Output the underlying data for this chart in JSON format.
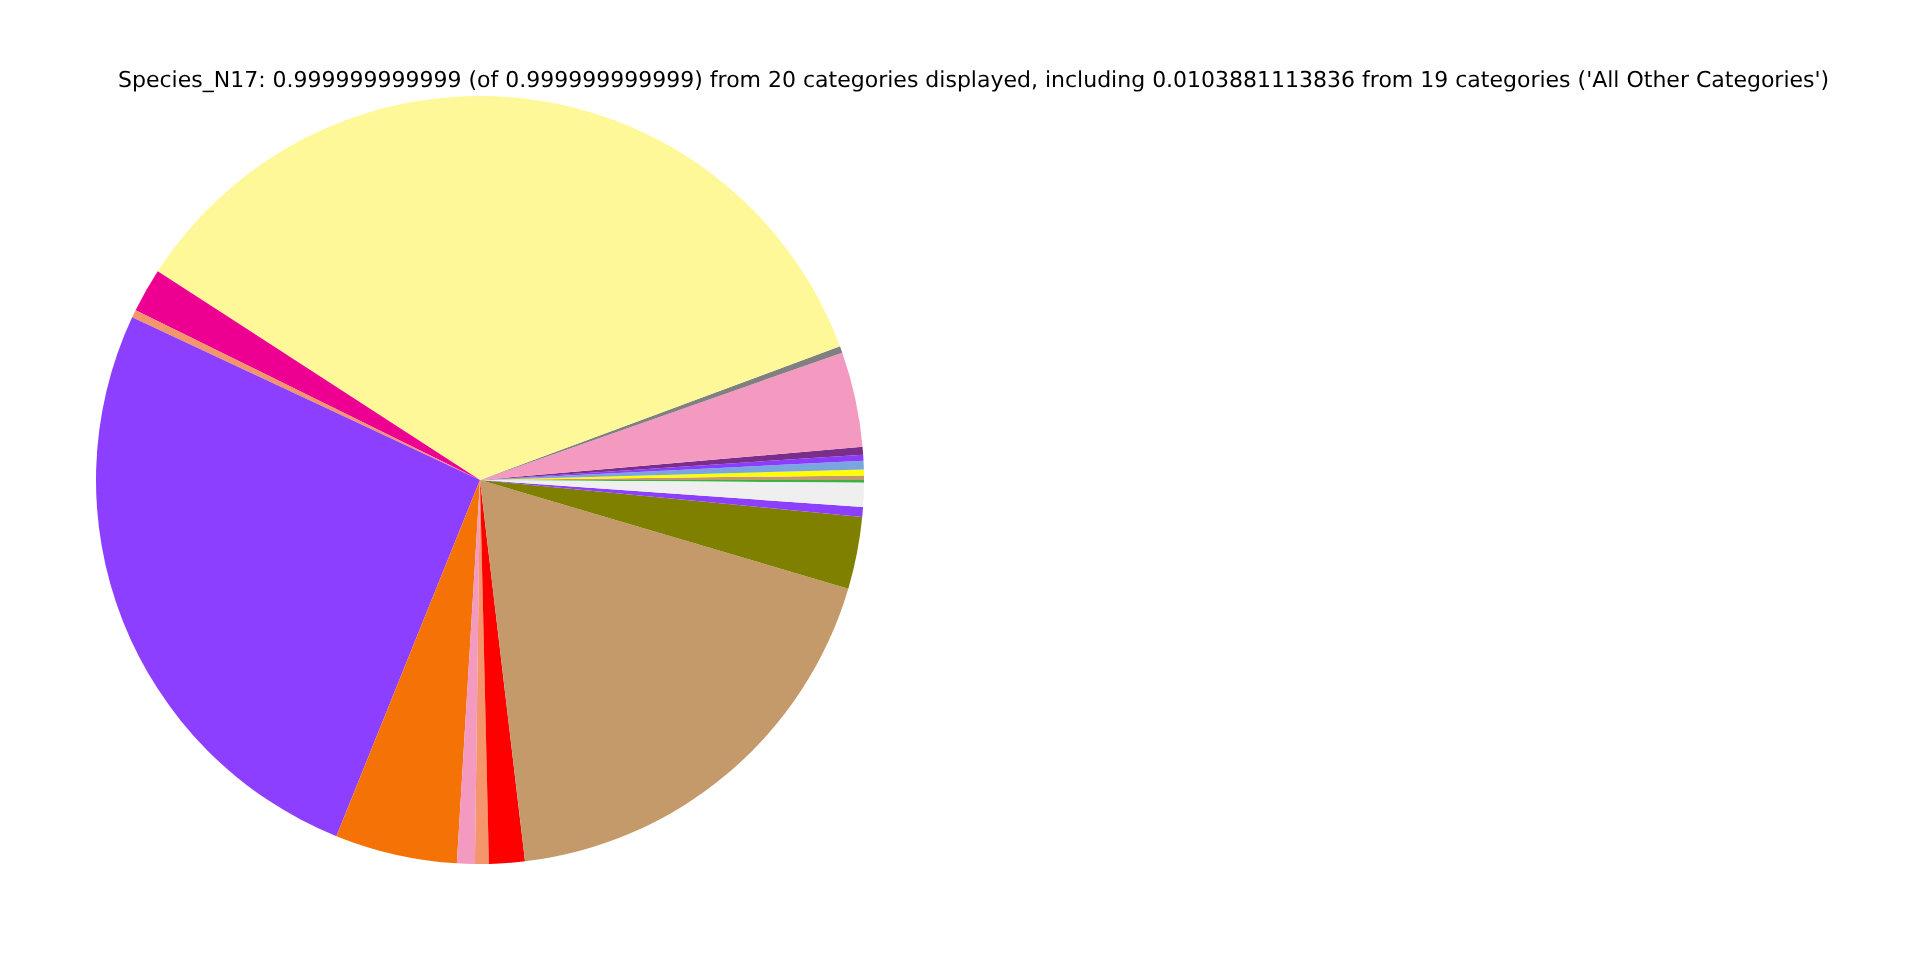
{
  "chart_data": {
    "type": "pie",
    "title": "Species_N17: 0.999999999999 (of 0.999999999999) from 20 categories displayed, including 0.0103881113836 from 19 categories ('All Other Categories')",
    "categories": [
      null,
      null,
      null,
      null,
      null,
      null,
      null,
      null,
      null,
      null,
      null,
      null,
      null,
      null,
      null,
      null,
      null,
      null,
      null,
      null
    ],
    "values": [
      0.11,
      0.19,
      0.25,
      0.36,
      0.25,
      0.33,
      4.0,
      0.28,
      35.19,
      1.86,
      0.33,
      25.86,
      5.14,
      0.75,
      0.58,
      1.5,
      18.56,
      3.03,
      0.42,
      1.01
    ],
    "colors": [
      "#3cb043",
      "#c49a6c",
      "#ffff00",
      "#7aa6e0",
      "#8b3dff",
      "#7b2d8b",
      "#f49ac1",
      "#808080",
      "#fff899",
      "#ed0091",
      "#f4956b",
      "#8d3fff",
      "#f47206",
      "#f49ac1",
      "#f4956b",
      "#ff0000",
      "#c49a6a",
      "#808000",
      "#8d3fff",
      "#efefef"
    ],
    "legend": false
  }
}
